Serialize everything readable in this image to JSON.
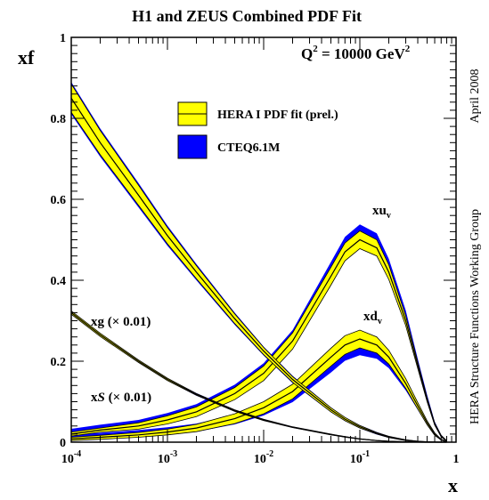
{
  "chart_data": {
    "type": "area",
    "title": "H1 and ZEUS Combined PDF Fit",
    "xlabel": "x",
    "ylabel": "xf",
    "xscale": "log",
    "xlim": [
      0.0001,
      1
    ],
    "ylim": [
      0,
      1
    ],
    "x_ticks": [
      {
        "value": 0.0001,
        "base": "10",
        "exp": "-4"
      },
      {
        "value": 0.001,
        "base": "10",
        "exp": "-3"
      },
      {
        "value": 0.01,
        "base": "10",
        "exp": "-2"
      },
      {
        "value": 0.1,
        "base": "10",
        "exp": "-1"
      },
      {
        "value": 1,
        "base": "1",
        "exp": ""
      }
    ],
    "y_ticks": [
      {
        "value": 0,
        "label": "0"
      },
      {
        "value": 0.2,
        "label": "0.2"
      },
      {
        "value": 0.4,
        "label": "0.4"
      },
      {
        "value": 0.6,
        "label": "0.6"
      },
      {
        "value": 0.8,
        "label": "0.8"
      },
      {
        "value": 1,
        "label": "1"
      }
    ],
    "annotation": {
      "q": "Q",
      "q_exp": "2",
      "value": " = 10000 GeV",
      "value_exp": "2"
    },
    "side_labels": {
      "top": "April 2008",
      "bottom": "HERA Structure Functions Working Group"
    },
    "legend": {
      "position": "top-center",
      "entries": [
        {
          "label": "HERA I PDF fit (prel.)",
          "color": "#ffff00",
          "edge": "#000000"
        },
        {
          "label": "CTEQ6.1M",
          "color": "#0000ff",
          "edge": "#000000"
        }
      ]
    },
    "curve_labels": {
      "xuv": {
        "main": "xu",
        "sub": "v"
      },
      "xdv": {
        "main": "xd",
        "sub": "v"
      },
      "xg": {
        "pre": "xg (",
        "times": "×",
        "post": " 0.01)"
      },
      "xS": {
        "pre": "x",
        "ital": "S",
        "mid": " (",
        "times": "×",
        "post": " 0.01)"
      }
    },
    "x": [
      0.0001,
      0.0002,
      0.0005,
      0.001,
      0.002,
      0.005,
      0.01,
      0.02,
      0.05,
      0.07,
      0.1,
      0.15,
      0.2,
      0.3,
      0.4,
      0.5,
      0.6,
      0.7,
      0.8
    ],
    "series": [
      {
        "key": "xuv",
        "hera": [
          0.02,
          0.03,
          0.04,
          0.055,
          0.075,
          0.12,
          0.17,
          0.25,
          0.41,
          0.47,
          0.5,
          0.48,
          0.42,
          0.3,
          0.19,
          0.105,
          0.045,
          0.015,
          0.003
        ],
        "hera_err": [
          0.005,
          0.005,
          0.008,
          0.01,
          0.012,
          0.015,
          0.018,
          0.02,
          0.022,
          0.022,
          0.022,
          0.02,
          0.018,
          0.012,
          0.008,
          0.005,
          0.003,
          0.002,
          0.001
        ],
        "cteq": [
          0.025,
          0.034,
          0.045,
          0.06,
          0.08,
          0.125,
          0.175,
          0.255,
          0.42,
          0.48,
          0.51,
          0.49,
          0.43,
          0.31,
          0.195,
          0.11,
          0.047,
          0.016,
          0.003
        ],
        "cteq_err": [
          0.008,
          0.009,
          0.01,
          0.012,
          0.014,
          0.017,
          0.02,
          0.022,
          0.025,
          0.027,
          0.028,
          0.026,
          0.023,
          0.016,
          0.011,
          0.007,
          0.004,
          0.002,
          0.001
        ]
      },
      {
        "key": "xdv",
        "hera": [
          0.008,
          0.012,
          0.018,
          0.025,
          0.035,
          0.058,
          0.085,
          0.125,
          0.21,
          0.24,
          0.255,
          0.24,
          0.21,
          0.145,
          0.09,
          0.048,
          0.02,
          0.006,
          0.001
        ],
        "hera_err": [
          0.004,
          0.005,
          0.006,
          0.007,
          0.009,
          0.012,
          0.015,
          0.018,
          0.022,
          0.023,
          0.022,
          0.02,
          0.017,
          0.012,
          0.008,
          0.005,
          0.003,
          0.001,
          0.0005
        ],
        "cteq": [
          0.012,
          0.016,
          0.022,
          0.028,
          0.036,
          0.056,
          0.08,
          0.115,
          0.19,
          0.22,
          0.235,
          0.225,
          0.2,
          0.14,
          0.088,
          0.047,
          0.02,
          0.006,
          0.001
        ],
        "cteq_err": [
          0.006,
          0.007,
          0.008,
          0.009,
          0.01,
          0.012,
          0.014,
          0.016,
          0.018,
          0.019,
          0.02,
          0.019,
          0.017,
          0.012,
          0.008,
          0.005,
          0.003,
          0.001,
          0.0005
        ]
      },
      {
        "key": "xg",
        "hera": [
          0.85,
          0.74,
          0.61,
          0.51,
          0.42,
          0.305,
          0.225,
          0.155,
          0.08,
          0.057,
          0.038,
          0.022,
          0.013,
          0.005,
          0.002,
          0.0008,
          0.0003,
          0.0001,
          0.0
        ],
        "hera_err": [
          0.035,
          0.03,
          0.025,
          0.02,
          0.016,
          0.012,
          0.009,
          0.007,
          0.005,
          0.004,
          0.003,
          0.002,
          0.0015,
          0.001,
          0.0005,
          0.0003,
          0.0002,
          0.0001,
          0.0
        ],
        "cteq": [
          0.85,
          0.74,
          0.61,
          0.51,
          0.42,
          0.305,
          0.225,
          0.155,
          0.08,
          0.057,
          0.038,
          0.022,
          0.013,
          0.005,
          0.002,
          0.0008,
          0.0003,
          0.0001,
          0.0
        ],
        "cteq_err": [
          0.04,
          0.035,
          0.03,
          0.025,
          0.02,
          0.015,
          0.011,
          0.009,
          0.006,
          0.005,
          0.004,
          0.003,
          0.002,
          0.001,
          0.0006,
          0.0003,
          0.0002,
          0.0001,
          0.0
        ]
      },
      {
        "key": "xS",
        "hera": [
          0.32,
          0.265,
          0.2,
          0.155,
          0.118,
          0.078,
          0.055,
          0.037,
          0.019,
          0.013,
          0.008,
          0.004,
          0.0022,
          0.0008,
          0.0003,
          0.0001,
          0.0,
          0.0,
          0.0
        ],
        "hera_err": [
          0.004,
          0.004,
          0.003,
          0.003,
          0.002,
          0.002,
          0.0015,
          0.001,
          0.001,
          0.0008,
          0.0006,
          0.0004,
          0.0003,
          0.0002,
          0.0001,
          0.0,
          0.0,
          0.0,
          0.0
        ],
        "cteq": [
          0.32,
          0.265,
          0.2,
          0.155,
          0.118,
          0.078,
          0.055,
          0.037,
          0.019,
          0.013,
          0.008,
          0.004,
          0.0022,
          0.0008,
          0.0003,
          0.0001,
          0.0,
          0.0,
          0.0
        ],
        "cteq_err": [
          0.005,
          0.004,
          0.004,
          0.003,
          0.003,
          0.002,
          0.002,
          0.0015,
          0.001,
          0.001,
          0.0008,
          0.0005,
          0.0004,
          0.0002,
          0.0001,
          0.0,
          0.0,
          0.0,
          0.0
        ]
      }
    ]
  }
}
